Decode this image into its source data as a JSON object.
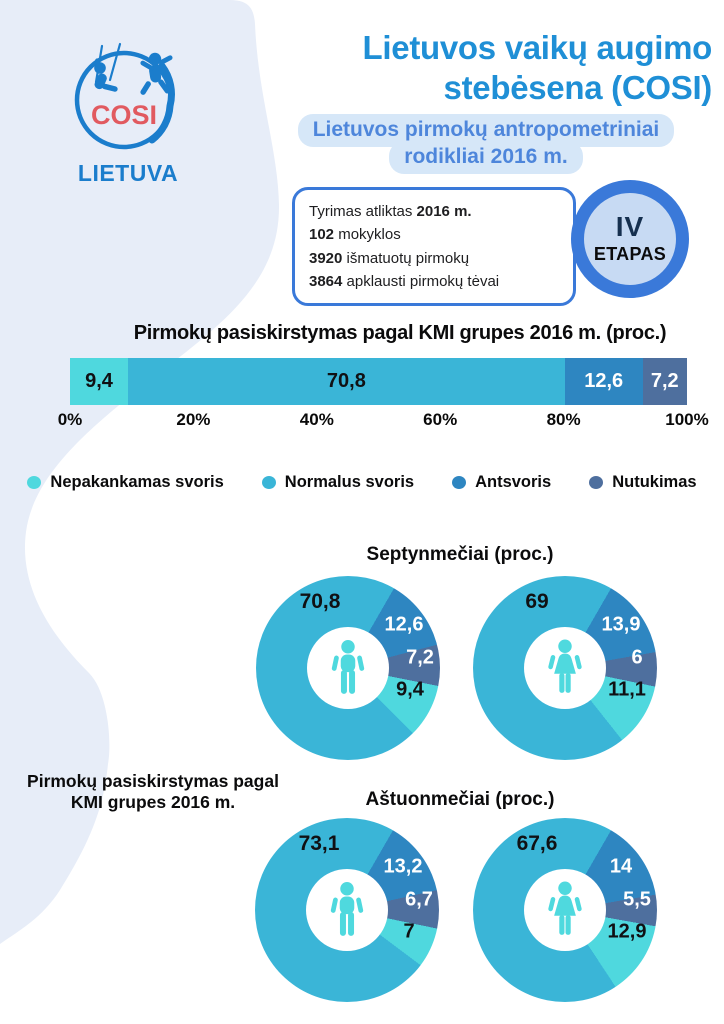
{
  "logo": {
    "cosi": "COSI",
    "country": "LIETUVA"
  },
  "header": {
    "title_line1": "Lietuvos vaikų augimo",
    "title_line2": "stebėsena (COSI)",
    "subtitle_line1": "Lietuvos pirmokų antropometriniai",
    "subtitle_line2": "rodikliai 2016 m."
  },
  "info_box": {
    "lines": [
      {
        "pre": "Tyrimas atliktas ",
        "bold": "2016 m.",
        "post": ""
      },
      {
        "pre": "",
        "bold": "102",
        "post": " mokyklos"
      },
      {
        "pre": "",
        "bold": "3920",
        "post": " išmatuotų pirmokų"
      },
      {
        "pre": "",
        "bold": "3864",
        "post": " apklausti pirmokų tėvai"
      }
    ]
  },
  "badge": {
    "stage": "IV",
    "label": "ETAPAS"
  },
  "legend": {
    "items": [
      {
        "label": "Nepakankamas svoris",
        "color": "#4FD8DE"
      },
      {
        "label": "Normalus svoris",
        "color": "#3AB5D7"
      },
      {
        "label": "Antsvoris",
        "color": "#2E86C1"
      },
      {
        "label": "Nutukimas",
        "color": "#4E6F9E"
      }
    ]
  },
  "side_label": {
    "line1": "Pirmokų pasiskirstymas pagal",
    "line2": "KMI grupes 2016 m."
  },
  "chart_data": [
    {
      "type": "bar",
      "variant": "stacked-horizontal-100",
      "title": "Pirmokų pasiskirstymas pagal KMI grupes 2016 m. (proc.)",
      "categories": [
        "Nepakankamas svoris",
        "Normalus svoris",
        "Antsvoris",
        "Nutukimas"
      ],
      "values": [
        9.4,
        70.8,
        12.6,
        7.2
      ],
      "value_labels": [
        "9,4",
        "70,8",
        "12,6",
        "7,2"
      ],
      "colors": [
        "#4FD8DE",
        "#3AB5D7",
        "#2E86C1",
        "#4E6F9E"
      ],
      "label_colors": [
        "#101114",
        "#101114",
        "#FFFFFF",
        "#FFFFFF"
      ],
      "x_ticks": [
        "0%",
        "20%",
        "40%",
        "60%",
        "80%",
        "100%"
      ],
      "xlim": [
        0,
        100
      ],
      "unit": "proc."
    },
    {
      "type": "pie",
      "variant": "donut",
      "title": "Septynmečiai (proc.)",
      "group": "Septynmečiai",
      "person": "boys",
      "categories": [
        "Nepakankamas svoris",
        "Normalus svoris",
        "Antsvoris",
        "Nutukimas"
      ],
      "values": [
        9.4,
        70.8,
        12.6,
        7.2
      ],
      "value_labels": [
        "9,4",
        "70,8",
        "12,6",
        "7,2"
      ],
      "colors": [
        "#4FD8DE",
        "#3AB5D7",
        "#2E86C1",
        "#4E6F9E"
      ]
    },
    {
      "type": "pie",
      "variant": "donut",
      "title": "Septynmečiai (proc.)",
      "group": "Septynmečiai",
      "person": "girls",
      "categories": [
        "Nepakankamas svoris",
        "Normalus svoris",
        "Antsvoris",
        "Nutukimas"
      ],
      "values": [
        11.1,
        69,
        13.9,
        6
      ],
      "value_labels": [
        "11,1",
        "69",
        "13,9",
        "6"
      ],
      "colors": [
        "#4FD8DE",
        "#3AB5D7",
        "#2E86C1",
        "#4E6F9E"
      ]
    },
    {
      "type": "pie",
      "variant": "donut",
      "title": "Aštuonmečiai (proc.)",
      "group": "Aštuonmečiai",
      "person": "boys",
      "categories": [
        "Nepakankamas svoris",
        "Normalus svoris",
        "Antsvoris",
        "Nutukimas"
      ],
      "values": [
        7,
        73.1,
        13.2,
        6.7
      ],
      "value_labels": [
        "7",
        "73,1",
        "13,2",
        "6,7"
      ],
      "colors": [
        "#4FD8DE",
        "#3AB5D7",
        "#2E86C1",
        "#4E6F9E"
      ]
    },
    {
      "type": "pie",
      "variant": "donut",
      "title": "Aštuonmečiai (proc.)",
      "group": "Aštuonmečiai",
      "person": "girls",
      "categories": [
        "Nepakankamas svoris",
        "Normalus svoris",
        "Antsvoris",
        "Nutukimas"
      ],
      "values": [
        12.9,
        67.6,
        14,
        5.5
      ],
      "value_labels": [
        "12,9",
        "67,6",
        "14",
        "5,5"
      ],
      "colors": [
        "#4FD8DE",
        "#3AB5D7",
        "#2E86C1",
        "#4E6F9E"
      ]
    }
  ]
}
